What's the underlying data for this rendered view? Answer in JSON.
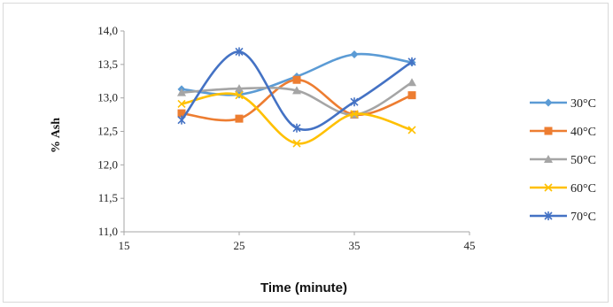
{
  "chart_data": {
    "type": "line",
    "xlabel": "Time (minute)",
    "ylabel": "% Ash",
    "xlim": [
      15,
      45
    ],
    "ylim": [
      11.0,
      14.0
    ],
    "xticks": [
      "15",
      "25",
      "35",
      "45"
    ],
    "yticks": [
      "11,0",
      "11,5",
      "12,0",
      "12,5",
      "13,0",
      "13,5",
      "14,0"
    ],
    "legend_position": "right",
    "grid": false,
    "smooth": true,
    "series": [
      {
        "name": "30°C",
        "color": "#5b9bd5",
        "marker": "diamond",
        "x": [
          20,
          25,
          30,
          35,
          40
        ],
        "y": [
          13.13,
          13.05,
          13.32,
          13.65,
          13.53
        ]
      },
      {
        "name": "40°C",
        "color": "#ed7d31",
        "marker": "square",
        "x": [
          20,
          25,
          30,
          35,
          40
        ],
        "y": [
          12.77,
          12.69,
          13.27,
          12.75,
          13.04
        ]
      },
      {
        "name": "50°C",
        "color": "#a5a5a5",
        "marker": "triangle",
        "x": [
          20,
          25,
          30,
          35,
          40
        ],
        "y": [
          13.08,
          13.14,
          13.11,
          12.75,
          13.23
        ]
      },
      {
        "name": "60°C",
        "color": "#ffc000",
        "marker": "x",
        "x": [
          20,
          25,
          30,
          35,
          40
        ],
        "y": [
          12.91,
          13.04,
          12.32,
          12.76,
          12.52
        ]
      },
      {
        "name": "70°C",
        "color": "#4472c4",
        "marker": "star",
        "x": [
          20,
          25,
          30,
          35,
          40
        ],
        "y": [
          12.67,
          13.69,
          12.55,
          12.94,
          13.54
        ]
      }
    ]
  }
}
